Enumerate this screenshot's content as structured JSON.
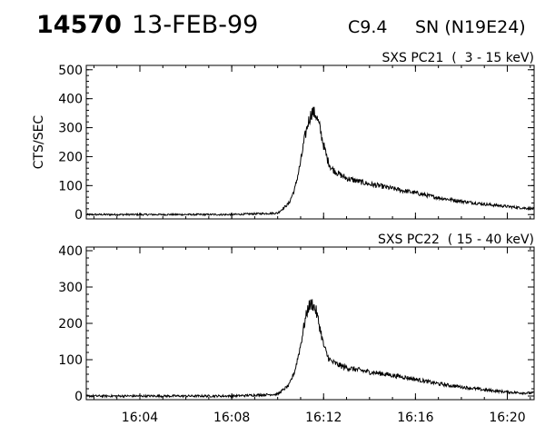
{
  "header": {
    "event_id": "14570",
    "date": "13-FEB-99",
    "flare_class": "C9.4",
    "location": "SN (N19E24)"
  },
  "chart_data": [
    {
      "type": "line",
      "title": "SXS PC21  (  3 - 15 keV)",
      "ylabel": "CTS/SEC",
      "xlabel": "",
      "xlim": [
        "16:01:40",
        "16:21:10"
      ],
      "ylim": [
        -15,
        515
      ],
      "yticks": [
        0,
        100,
        200,
        300,
        400,
        500
      ],
      "xticks": [
        "16:04",
        "16:08",
        "16:12",
        "16:16",
        "16:20"
      ],
      "grid": false,
      "series": [
        {
          "x": [
            "16:01:40",
            "16:04:00",
            "16:08:00",
            "16:10:00",
            "16:10:30",
            "16:10:45",
            "16:11:00",
            "16:11:10",
            "16:11:20",
            "16:11:30",
            "16:11:40",
            "16:11:50",
            "16:12:00",
            "16:12:10",
            "16:12:20",
            "16:12:40",
            "16:13:00",
            "16:13:30",
            "16:14:00",
            "16:14:30",
            "16:15:00",
            "16:15:30",
            "16:16:00",
            "16:16:30",
            "16:17:00",
            "16:17:30",
            "16:18:00",
            "16:18:30",
            "16:19:00",
            "16:19:30",
            "16:20:00",
            "16:20:30",
            "16:21:10"
          ],
          "y": [
            0,
            0,
            0,
            5,
            40,
            90,
            180,
            260,
            320,
            355,
            345,
            300,
            240,
            190,
            160,
            140,
            125,
            115,
            105,
            98,
            90,
            82,
            75,
            66,
            58,
            52,
            46,
            41,
            36,
            32,
            28,
            24,
            20
          ]
        }
      ]
    },
    {
      "type": "line",
      "title": "SXS PC22  ( 15 - 40 keV)",
      "ylabel": "",
      "xlabel": "",
      "xlim": [
        "16:01:40",
        "16:21:10"
      ],
      "ylim": [
        -10,
        410
      ],
      "yticks": [
        0,
        100,
        200,
        300,
        400
      ],
      "xticks": [
        "16:04",
        "16:08",
        "16:12",
        "16:16",
        "16:20"
      ],
      "grid": false,
      "series": [
        {
          "x": [
            "16:01:40",
            "16:04:00",
            "16:08:00",
            "16:10:00",
            "16:10:30",
            "16:10:45",
            "16:11:00",
            "16:11:10",
            "16:11:20",
            "16:11:30",
            "16:11:40",
            "16:11:50",
            "16:12:00",
            "16:12:10",
            "16:12:20",
            "16:12:40",
            "16:13:00",
            "16:13:30",
            "16:14:00",
            "16:14:30",
            "16:15:00",
            "16:15:30",
            "16:16:00",
            "16:16:30",
            "16:17:00",
            "16:17:30",
            "16:18:00",
            "16:18:30",
            "16:19:00",
            "16:19:30",
            "16:20:00",
            "16:20:30",
            "16:21:10"
          ],
          "y": [
            0,
            0,
            0,
            5,
            30,
            70,
            140,
            200,
            245,
            255,
            235,
            190,
            140,
            110,
            95,
            85,
            78,
            72,
            66,
            62,
            57,
            52,
            46,
            40,
            34,
            29,
            25,
            21,
            17,
            14,
            11,
            9,
            8
          ]
        }
      ]
    }
  ]
}
